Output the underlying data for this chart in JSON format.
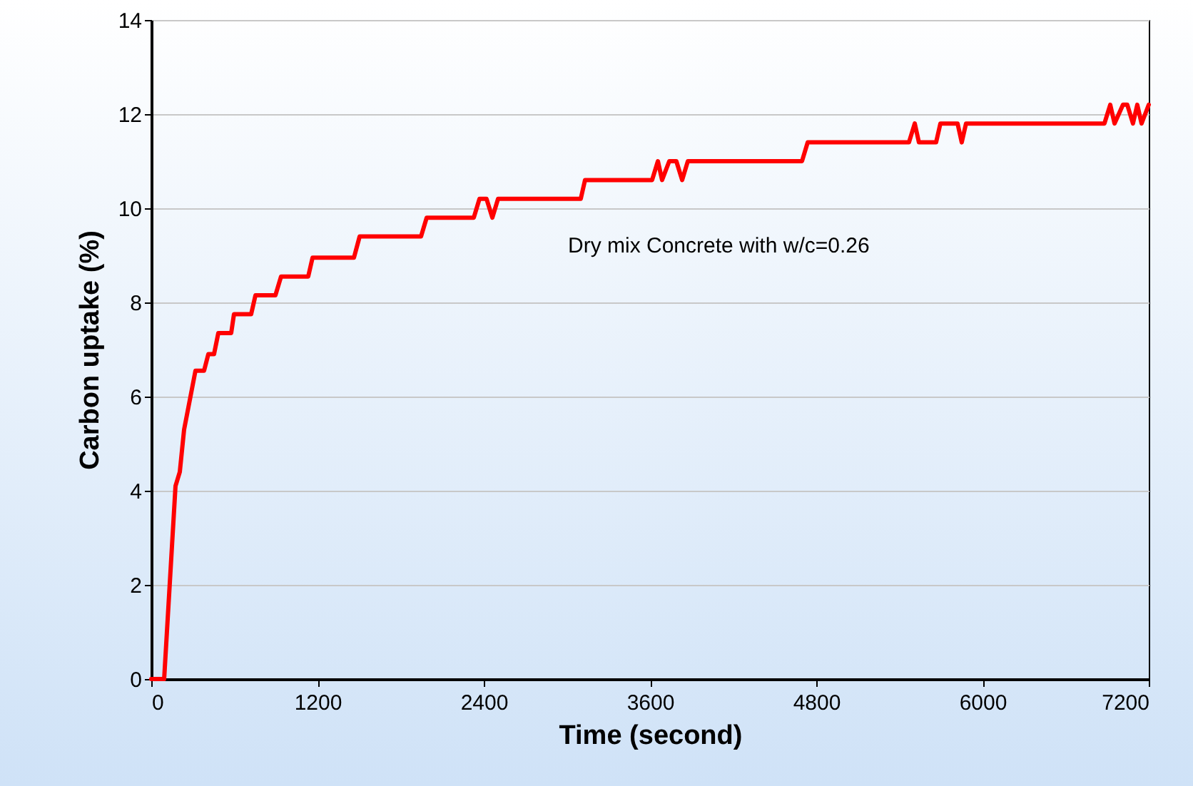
{
  "chart_data": {
    "type": "line",
    "xlabel": "Time (second)",
    "ylabel": "Carbon uptake (%)",
    "annotations": [
      "Dry mix Concrete with w/c=0.26"
    ],
    "x": [
      0,
      93,
      175,
      206,
      237,
      319,
      381,
      412,
      453,
      484,
      577,
      597,
      721,
      752,
      896,
      937,
      1133,
      1164,
      1463,
      1504,
      1947,
      1988,
      2328,
      2369,
      2420,
      2462,
      2503,
      3100,
      3131,
      3615,
      3657,
      3687,
      3739,
      3790,
      3832,
      3873,
      4697,
      4738,
      5469,
      5511,
      5541,
      5665,
      5696,
      5820,
      5850,
      5881,
      6880,
      6922,
      6953,
      7014,
      7045,
      7086,
      7117,
      7148,
      7200
    ],
    "series": [
      {
        "color": "#ff0000",
        "values": [
          0,
          0,
          4.1,
          4.4,
          5.3,
          6.55,
          6.55,
          6.9,
          6.9,
          7.35,
          7.35,
          7.75,
          7.75,
          8.15,
          8.15,
          8.55,
          8.55,
          8.95,
          8.95,
          9.4,
          9.4,
          9.8,
          9.8,
          10.2,
          10.2,
          9.8,
          10.2,
          10.2,
          10.6,
          10.6,
          11,
          10.6,
          11,
          11,
          10.6,
          11,
          11,
          11.4,
          11.4,
          11.8,
          11.4,
          11.4,
          11.8,
          11.8,
          11.4,
          11.8,
          11.8,
          12.2,
          11.8,
          12.2,
          12.2,
          11.8,
          12.2,
          11.8,
          12.2
        ]
      }
    ],
    "xlim": [
      0,
      7200
    ],
    "xticks": [
      0,
      1200,
      2400,
      3600,
      4800,
      6000,
      7200
    ],
    "ylim": [
      0,
      14
    ],
    "yticks": [
      0,
      2,
      4,
      6,
      8,
      10,
      12,
      14
    ],
    "grid": "y",
    "marker": "none",
    "line_style": "solid"
  }
}
